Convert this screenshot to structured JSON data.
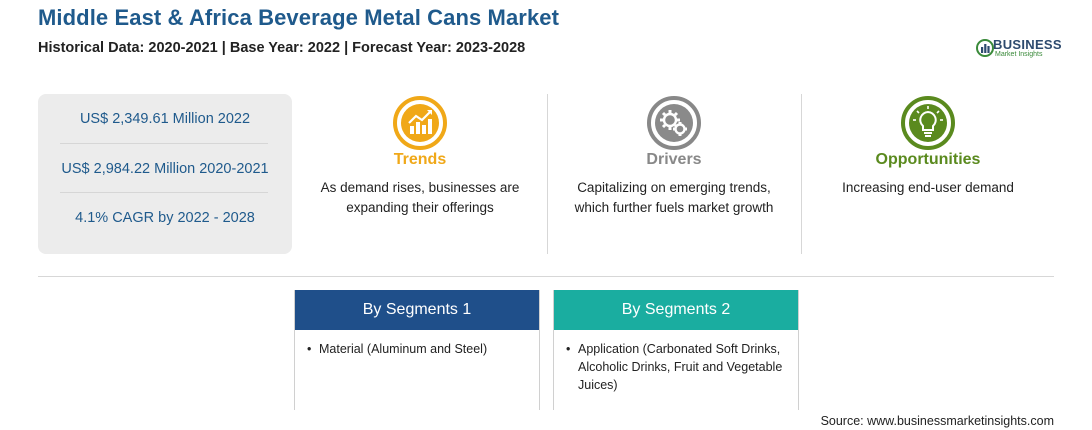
{
  "header": {
    "title": "Middle East & Africa Beverage Metal Cans Market",
    "subtitle": "Historical Data: 2020-2021 | Base Year: 2022 | Forecast Year: 2023-2028"
  },
  "logo": {
    "name": "BUSINESS",
    "sub": "Market Insights",
    "icon": "globe-chart-icon"
  },
  "stats": [
    "US$ 2,349.61 Million 2022",
    "US$ 2,984.22 Million 2020-2021",
    "4.1% CAGR by 2022 - 2028"
  ],
  "features": [
    {
      "title": "Trends",
      "desc1": "As demand rises, businesses are",
      "desc2": "expanding their offerings",
      "color": "#f0a818",
      "icon": "growth-chart-icon"
    },
    {
      "title": "Drivers",
      "desc1": "Capitalizing on emerging trends,",
      "desc2": "which further fuels market growth",
      "color": "#888888",
      "icon": "gears-icon"
    },
    {
      "title": "Opportunities",
      "desc1": "Increasing end-user demand",
      "desc2": "",
      "color": "#5a8a1e",
      "icon": "lightbulb-icon"
    }
  ],
  "segments": [
    {
      "title": "By Segments 1",
      "color": "#1f4f8a",
      "item": "Material (Aluminum and Steel)"
    },
    {
      "title": "By Segments 2",
      "color": "#1aada0",
      "item": "Application (Carbonated Soft Drinks, Alcoholic Drinks, Fruit and Vegetable Juices)"
    }
  ],
  "source": "Source: www.businessmarketinsights.com"
}
